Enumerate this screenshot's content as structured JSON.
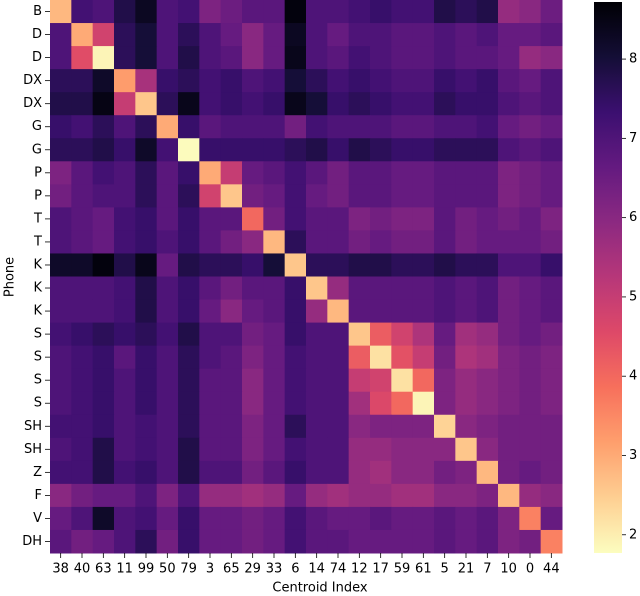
{
  "chart_data": {
    "type": "heatmap",
    "xlabel": "Centroid Index",
    "ylabel": "Phone",
    "categories": [
      "38",
      "40",
      "63",
      "11",
      "99",
      "50",
      "79",
      "3",
      "65",
      "29",
      "33",
      "6",
      "14",
      "74",
      "12",
      "17",
      "59",
      "61",
      "5",
      "21",
      "7",
      "10",
      "0",
      "44"
    ],
    "rows": [
      "B",
      "D",
      "D",
      "DX",
      "DX",
      "G",
      "G",
      "P",
      "P",
      "T",
      "T",
      "K",
      "K",
      "K",
      "S",
      "S",
      "S",
      "S",
      "SH",
      "SH",
      "Z",
      "F",
      "V",
      "DH"
    ],
    "values": [
      [
        2.8,
        7.2,
        7.0,
        7.8,
        8.3,
        7.0,
        7.2,
        6.2,
        6.5,
        6.8,
        6.8,
        8.6,
        7.0,
        7.0,
        7.2,
        7.4,
        7.2,
        7.2,
        7.8,
        7.6,
        7.8,
        5.8,
        6.0,
        6.5
      ],
      [
        7.0,
        3.0,
        4.8,
        7.6,
        8.0,
        7.0,
        7.6,
        7.0,
        6.6,
        6.0,
        6.6,
        8.3,
        7.0,
        6.6,
        7.0,
        7.0,
        6.8,
        6.8,
        7.0,
        6.8,
        7.0,
        6.6,
        6.6,
        6.8
      ],
      [
        7.0,
        4.5,
        1.9,
        7.6,
        8.0,
        7.0,
        7.8,
        7.0,
        6.8,
        6.0,
        6.6,
        8.4,
        7.0,
        6.8,
        7.2,
        7.0,
        6.8,
        6.8,
        7.0,
        6.8,
        6.8,
        6.6,
        5.8,
        6.0
      ],
      [
        7.6,
        7.6,
        8.2,
        3.2,
        5.5,
        7.4,
        7.6,
        7.2,
        7.4,
        7.0,
        7.2,
        8.0,
        7.6,
        7.2,
        7.4,
        7.2,
        7.0,
        7.0,
        7.4,
        7.2,
        7.4,
        6.8,
        6.6,
        7.0
      ],
      [
        7.8,
        7.8,
        8.5,
        5.0,
        2.6,
        7.6,
        8.4,
        7.2,
        7.4,
        7.2,
        7.4,
        8.4,
        8.0,
        7.4,
        7.6,
        7.4,
        7.2,
        7.2,
        7.6,
        7.4,
        7.4,
        7.0,
        6.8,
        7.0
      ],
      [
        7.4,
        7.2,
        7.6,
        7.0,
        7.6,
        3.0,
        7.4,
        6.8,
        7.0,
        7.0,
        7.0,
        6.4,
        7.2,
        7.0,
        7.0,
        7.0,
        6.8,
        6.8,
        7.0,
        7.0,
        7.2,
        6.6,
        6.4,
        6.6
      ],
      [
        7.6,
        7.6,
        7.8,
        7.4,
        8.2,
        7.2,
        1.8,
        7.4,
        7.4,
        7.4,
        7.4,
        7.6,
        7.8,
        7.4,
        7.8,
        7.6,
        7.4,
        7.4,
        7.6,
        7.6,
        7.6,
        7.0,
        6.8,
        7.0
      ],
      [
        6.2,
        6.8,
        7.2,
        7.0,
        7.6,
        6.8,
        7.4,
        3.0,
        5.0,
        6.6,
        6.8,
        7.2,
        6.8,
        6.4,
        6.8,
        6.8,
        6.6,
        6.6,
        6.8,
        6.8,
        6.8,
        6.2,
        6.4,
        6.6
      ],
      [
        6.4,
        6.8,
        7.0,
        7.0,
        7.6,
        6.8,
        7.6,
        4.8,
        2.6,
        6.4,
        6.6,
        7.2,
        6.6,
        6.4,
        6.8,
        6.8,
        6.6,
        6.6,
        6.8,
        6.8,
        6.8,
        6.2,
        6.4,
        6.6
      ],
      [
        7.0,
        6.8,
        6.6,
        7.2,
        7.4,
        6.8,
        7.4,
        6.8,
        6.8,
        4.0,
        6.4,
        7.2,
        6.8,
        6.8,
        6.2,
        6.4,
        6.2,
        6.2,
        6.8,
        6.4,
        6.6,
        6.4,
        6.6,
        6.2
      ],
      [
        7.0,
        6.8,
        6.6,
        7.2,
        7.4,
        7.0,
        7.4,
        6.8,
        6.4,
        6.0,
        2.8,
        7.6,
        6.8,
        6.8,
        6.4,
        6.6,
        6.4,
        6.4,
        6.8,
        6.4,
        6.6,
        6.6,
        6.6,
        6.4
      ],
      [
        8.2,
        8.2,
        8.6,
        7.8,
        8.4,
        6.6,
        7.8,
        7.6,
        7.6,
        7.4,
        8.0,
        2.6,
        7.6,
        7.6,
        7.8,
        7.8,
        7.6,
        7.6,
        7.8,
        7.6,
        7.6,
        7.0,
        7.0,
        7.4
      ],
      [
        7.0,
        7.0,
        7.0,
        7.2,
        7.8,
        7.0,
        7.4,
        6.8,
        6.4,
        6.8,
        6.8,
        7.4,
        2.6,
        5.8,
        6.8,
        6.8,
        6.8,
        6.8,
        7.0,
        6.8,
        7.0,
        6.4,
        6.6,
        6.8
      ],
      [
        7.0,
        7.0,
        7.0,
        7.2,
        7.8,
        7.0,
        7.4,
        6.6,
        6.0,
        6.6,
        6.8,
        7.4,
        5.8,
        2.8,
        6.8,
        6.8,
        6.8,
        6.8,
        7.0,
        6.8,
        7.0,
        6.4,
        6.6,
        6.8
      ],
      [
        7.2,
        7.4,
        7.6,
        7.4,
        7.6,
        7.2,
        7.8,
        7.0,
        7.0,
        6.4,
        6.6,
        7.4,
        7.0,
        7.0,
        2.6,
        4.2,
        4.8,
        5.4,
        6.6,
        5.6,
        5.8,
        6.4,
        6.6,
        6.4
      ],
      [
        7.0,
        7.2,
        7.4,
        6.8,
        7.4,
        7.0,
        7.6,
        7.0,
        6.8,
        6.2,
        6.6,
        7.2,
        7.0,
        7.0,
        4.2,
        2.2,
        4.4,
        5.0,
        6.4,
        5.4,
        5.6,
        6.2,
        6.4,
        6.2
      ],
      [
        7.0,
        7.2,
        7.4,
        7.0,
        7.4,
        7.0,
        7.6,
        6.8,
        6.8,
        6.0,
        6.6,
        7.2,
        7.0,
        7.0,
        5.0,
        4.8,
        2.2,
        4.0,
        6.2,
        5.8,
        6.0,
        6.2,
        6.4,
        6.2
      ],
      [
        7.0,
        7.2,
        7.4,
        7.0,
        7.4,
        7.0,
        7.6,
        6.8,
        6.8,
        6.0,
        6.6,
        7.2,
        7.0,
        7.0,
        5.6,
        4.6,
        4.0,
        1.9,
        6.2,
        5.8,
        6.0,
        6.2,
        6.4,
        6.2
      ],
      [
        7.2,
        7.2,
        7.4,
        7.0,
        7.2,
        7.0,
        7.6,
        6.8,
        6.8,
        6.2,
        6.6,
        7.6,
        7.0,
        7.0,
        6.0,
        6.2,
        6.2,
        6.2,
        2.4,
        6.0,
        6.2,
        6.4,
        6.4,
        6.4
      ],
      [
        7.0,
        7.2,
        7.8,
        7.0,
        7.2,
        7.0,
        7.8,
        6.8,
        6.8,
        6.2,
        6.6,
        7.2,
        7.0,
        7.0,
        5.8,
        5.8,
        6.0,
        6.0,
        6.0,
        2.6,
        6.0,
        6.4,
        6.4,
        6.4
      ],
      [
        7.2,
        7.2,
        7.8,
        7.2,
        7.4,
        7.0,
        7.8,
        7.0,
        7.0,
        6.4,
        6.8,
        7.4,
        7.0,
        7.0,
        5.8,
        5.6,
        6.0,
        6.0,
        6.4,
        6.2,
        2.8,
        6.4,
        6.6,
        6.4
      ],
      [
        6.0,
        6.4,
        6.6,
        6.6,
        7.0,
        6.2,
        7.0,
        5.8,
        5.8,
        5.6,
        5.8,
        6.6,
        5.8,
        5.6,
        5.8,
        5.8,
        5.6,
        5.6,
        6.0,
        6.0,
        6.2,
        2.8,
        5.8,
        6.0
      ],
      [
        6.6,
        7.0,
        8.2,
        7.0,
        7.2,
        6.6,
        7.4,
        6.6,
        6.6,
        6.4,
        6.6,
        7.2,
        6.8,
        6.6,
        6.6,
        6.8,
        6.6,
        6.6,
        6.8,
        6.6,
        6.8,
        6.2,
        3.6,
        6.6
      ],
      [
        6.8,
        6.4,
        6.6,
        7.0,
        7.6,
        6.4,
        7.4,
        6.6,
        6.6,
        6.4,
        6.6,
        7.2,
        6.8,
        6.8,
        6.6,
        6.6,
        6.6,
        6.6,
        6.8,
        6.6,
        6.8,
        6.2,
        6.4,
        3.6
      ]
    ],
    "colormap": "magma_r",
    "zlim": [
      1.77,
      8.72
    ],
    "zticks": [
      2,
      3,
      4,
      5,
      6,
      7,
      8
    ]
  }
}
